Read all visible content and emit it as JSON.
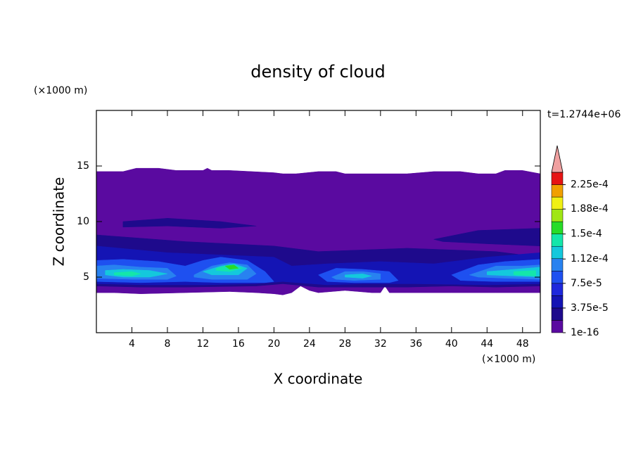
{
  "chart_data": {
    "type": "contour",
    "title": "density of cloud",
    "xlabel": "X coordinate",
    "ylabel": "Z coordinate",
    "xunit": "(×1000 m)",
    "yunit": "(×1000 m)",
    "annotation": "t=1.2744e+06",
    "xlim": [
      0,
      50
    ],
    "ylim": [
      0,
      20
    ],
    "xticks": [
      4,
      8,
      12,
      16,
      20,
      24,
      28,
      32,
      36,
      40,
      44,
      48
    ],
    "yticks": [
      5,
      10,
      15
    ],
    "colorbar": {
      "clim": [
        1e-16,
        0.00024375
      ],
      "colors": [
        "#5a0aa0",
        "#1e0a8c",
        "#1414b4",
        "#1e28dc",
        "#1e50f0",
        "#2882f0",
        "#14c8dc",
        "#14e6aa",
        "#28dc28",
        "#a0e614",
        "#f0f014",
        "#f0a000",
        "#e61414"
      ],
      "over_color": "#f0a0a0",
      "ticks": [
        1e-16,
        {
          "value": 3.75e-05,
          "label": "3.75e-5"
        },
        {
          "value": 7.5e-05,
          "label": "7.5e-5"
        },
        {
          "value": 0.000112,
          "label": "1.12e-4"
        },
        {
          "value": 0.00015,
          "label": "1.5e-4"
        },
        {
          "value": 0.000188,
          "label": "1.88e-4"
        },
        {
          "value": 0.000225,
          "label": "2.25e-4"
        }
      ]
    },
    "contours": [
      {
        "color": "#5a0aa0",
        "x": [
          0,
          3,
          4,
          4.5,
          7,
          9,
          12,
          12.5,
          13,
          15,
          20,
          21,
          22.5,
          25,
          27,
          28,
          30,
          33,
          35,
          38,
          41,
          43,
          45,
          46,
          48,
          50,
          50,
          45,
          40,
          35,
          33,
          32.5,
          32,
          31,
          28,
          25,
          24,
          23,
          22,
          21,
          20,
          18,
          15,
          10,
          5,
          2,
          0
        ],
        "z": [
          14.5,
          14.5,
          14.7,
          14.8,
          14.8,
          14.6,
          14.6,
          14.8,
          14.6,
          14.6,
          14.4,
          14.3,
          14.3,
          14.5,
          14.5,
          14.3,
          14.3,
          14.3,
          14.3,
          14.5,
          14.5,
          14.3,
          14.3,
          14.6,
          14.6,
          14.3,
          3.6,
          3.6,
          3.6,
          3.6,
          3.6,
          4.2,
          3.6,
          3.6,
          3.8,
          3.6,
          3.8,
          4.2,
          3.6,
          3.4,
          3.5,
          3.6,
          3.7,
          3.6,
          3.5,
          3.6,
          3.6
        ]
      },
      {
        "color": "#1e0a8c",
        "x": [
          0,
          10,
          20,
          25,
          35,
          45,
          50,
          50,
          45,
          40,
          35,
          30,
          25,
          21,
          18,
          10,
          5,
          0
        ],
        "z": [
          8.8,
          8.2,
          7.8,
          7.3,
          7.6,
          7.3,
          6.8,
          4.2,
          4.1,
          4.2,
          4.1,
          4.1,
          4.1,
          4.4,
          4.2,
          4.1,
          4.1,
          4.2
        ]
      },
      {
        "color": "#1e0a8c",
        "x": [
          3,
          8,
          14,
          18,
          14,
          8,
          3
        ],
        "z": [
          10,
          10.3,
          10,
          9.6,
          9.4,
          9.6,
          9.5
        ]
      },
      {
        "color": "#1e0a8c",
        "x": [
          38,
          43,
          50,
          50,
          44,
          39
        ],
        "z": [
          8.4,
          9.2,
          9.4,
          7.8,
          8.0,
          8.2
        ]
      },
      {
        "color": "#1414b4",
        "x": [
          0,
          8,
          14,
          20,
          22,
          26,
          32,
          38,
          44,
          50,
          50,
          44,
          36,
          30,
          26,
          21,
          18,
          12,
          6,
          0
        ],
        "z": [
          7.8,
          7.2,
          7.0,
          6.8,
          6.0,
          6.2,
          6.4,
          6.2,
          6.8,
          7.2,
          4.4,
          4.3,
          4.4,
          4.4,
          4.3,
          4.6,
          4.4,
          4.3,
          4.3,
          4.4
        ]
      },
      {
        "color": "#1e50f0",
        "x": [
          0,
          3,
          7,
          10,
          12,
          14,
          17,
          19,
          20,
          19,
          14,
          10,
          5,
          0
        ],
        "z": [
          6.5,
          6.6,
          6.4,
          6.0,
          6.5,
          6.8,
          6.5,
          5.5,
          4.6,
          4.5,
          4.5,
          4.6,
          4.5,
          4.6
        ]
      },
      {
        "color": "#1e50f0",
        "x": [
          25,
          27,
          30,
          33,
          34,
          33,
          29,
          26
        ],
        "z": [
          5.2,
          5.8,
          5.7,
          5.5,
          4.7,
          4.5,
          4.5,
          4.6
        ]
      },
      {
        "color": "#1e50f0",
        "x": [
          40,
          43,
          46,
          50,
          50,
          45,
          41
        ],
        "z": [
          5.2,
          6.1,
          6.4,
          6.6,
          4.6,
          4.6,
          4.7
        ]
      },
      {
        "color": "#2882f0",
        "x": [
          0,
          2,
          5,
          8,
          9,
          8,
          4,
          0
        ],
        "z": [
          6.0,
          6.1,
          5.9,
          5.8,
          5.1,
          4.8,
          4.8,
          4.9
        ]
      },
      {
        "color": "#2882f0",
        "x": [
          11,
          13,
          15,
          17,
          18,
          17,
          13,
          11
        ],
        "z": [
          5.2,
          6.0,
          6.3,
          6.1,
          5.3,
          4.8,
          4.8,
          5.0
        ]
      },
      {
        "color": "#2882f0",
        "x": [
          26.5,
          28,
          30,
          32,
          32,
          29,
          27
        ],
        "z": [
          5.0,
          5.5,
          5.5,
          5.3,
          4.8,
          4.7,
          4.8
        ]
      },
      {
        "color": "#2882f0",
        "x": [
          42,
          45,
          48,
          50,
          50,
          46,
          43
        ],
        "z": [
          5.2,
          6.0,
          6.0,
          6.1,
          4.8,
          4.9,
          5.0
        ]
      },
      {
        "color": "#14c8dc",
        "x": [
          1,
          3,
          6,
          8,
          6,
          3,
          1
        ],
        "z": [
          5.6,
          5.7,
          5.6,
          5.3,
          5.0,
          5.0,
          5.2
        ]
      },
      {
        "color": "#14c8dc",
        "x": [
          12,
          14,
          15.5,
          17,
          16,
          13
        ],
        "z": [
          5.5,
          6.0,
          6.2,
          5.8,
          5.2,
          5.2
        ]
      },
      {
        "color": "#14c8dc",
        "x": [
          28,
          30,
          31,
          30,
          28
        ],
        "z": [
          5.2,
          5.3,
          5.1,
          4.9,
          5.0
        ]
      },
      {
        "color": "#14c8dc",
        "x": [
          44,
          47,
          50,
          50,
          47,
          44
        ],
        "z": [
          5.5,
          5.7,
          5.9,
          5.0,
          5.1,
          5.2
        ]
      },
      {
        "color": "#14e6aa",
        "x": [
          2,
          4,
          5,
          4,
          2
        ],
        "z": [
          5.4,
          5.5,
          5.3,
          5.1,
          5.2
        ]
      },
      {
        "color": "#14e6aa",
        "x": [
          13.5,
          15,
          16.5,
          15,
          13.5
        ],
        "z": [
          5.8,
          6.1,
          5.8,
          5.5,
          5.6
        ]
      },
      {
        "color": "#14e6aa",
        "x": [
          47,
          49.5,
          49.5,
          47
        ],
        "z": [
          5.5,
          5.6,
          5.1,
          5.2
        ]
      },
      {
        "color": "#28dc28",
        "x": [
          14.5,
          15.5,
          16,
          15
        ],
        "z": [
          6.0,
          6.1,
          5.8,
          5.7
        ]
      }
    ]
  }
}
